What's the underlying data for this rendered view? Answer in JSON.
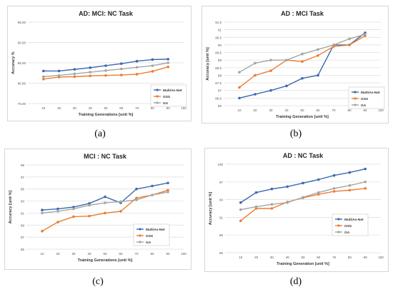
{
  "panels": [
    {
      "caption": "(a)"
    },
    {
      "caption": "(b)"
    },
    {
      "caption": "(c)"
    },
    {
      "caption": "(d)"
    }
  ],
  "colors": {
    "MultiAs-Net": "#3d69b0",
    "GSS": "#ed7d31",
    "GA": "#a5a5a5"
  },
  "chart_data": [
    {
      "type": "line",
      "title": "AD: MCI: NC Task",
      "xlabel": "Training Generations [unit %]",
      "ylabel": "Accuracy %",
      "xlim": [
        0,
        100
      ],
      "xticks": [
        10,
        20,
        30,
        40,
        50,
        60,
        70,
        80,
        90,
        100
      ],
      "ylim": [
        75,
        95
      ],
      "yticks": [
        "75.00",
        "80.00",
        "85.00",
        "90.00",
        "95.00"
      ],
      "ytick_values": [
        75,
        80,
        85,
        90,
        95
      ],
      "x": [
        10,
        20,
        30,
        40,
        50,
        60,
        70,
        80,
        90
      ],
      "series": [
        {
          "name": "MultiAs-Net",
          "values": [
            83.0,
            83.0,
            83.4,
            83.8,
            84.3,
            84.8,
            85.4,
            85.8,
            85.9
          ]
        },
        {
          "name": "GSS",
          "values": [
            81.0,
            81.5,
            81.6,
            81.8,
            81.9,
            82.0,
            82.2,
            82.9,
            84.0
          ]
        },
        {
          "name": "GA",
          "values": [
            81.6,
            81.9,
            82.3,
            82.7,
            83.1,
            83.5,
            83.9,
            84.3,
            85.0
          ]
        }
      ],
      "legend": "bottom-right",
      "grid": true
    },
    {
      "type": "line",
      "title": "AD : MCI Task",
      "xlabel": "Training Generation [unit %]",
      "ylabel": "Accuracy [unit %]",
      "xlim": [
        0,
        100
      ],
      "xticks": [
        10,
        20,
        30,
        40,
        50,
        60,
        70,
        80,
        90,
        100
      ],
      "ylim": [
        86,
        91.5
      ],
      "yticks": [
        "86",
        "86.5",
        "87",
        "87.5",
        "88",
        "88.5",
        "89",
        "89.5",
        "90",
        "90.5",
        "91",
        "91.5"
      ],
      "ytick_values": [
        86,
        86.5,
        87,
        87.5,
        88,
        88.5,
        89,
        89.5,
        90,
        90.5,
        91,
        91.5
      ],
      "x": [
        10,
        20,
        30,
        40,
        50,
        60,
        70,
        80,
        90
      ],
      "series": [
        {
          "name": "MultiAs-Net",
          "values": [
            86.5,
            86.75,
            87.0,
            87.3,
            87.8,
            88.0,
            90.0,
            90.0,
            90.8
          ]
        },
        {
          "name": "GSS",
          "values": [
            87.2,
            88.0,
            88.3,
            89.0,
            88.9,
            89.3,
            89.9,
            90.0,
            90.6
          ]
        },
        {
          "name": "GA",
          "values": [
            88.2,
            88.8,
            89.0,
            89.0,
            89.4,
            89.7,
            90.0,
            90.4,
            90.7
          ]
        }
      ],
      "legend": "bottom-right",
      "grid": true
    },
    {
      "type": "line",
      "title": "MCI : NC Task",
      "xlabel": "Training Generations [unit %]",
      "ylabel": "Accuracy [unit %]",
      "xlim": [
        0,
        100
      ],
      "xticks": [
        10,
        20,
        30,
        40,
        50,
        60,
        70,
        80,
        90,
        100
      ],
      "ylim": [
        85,
        99
      ],
      "yticks": [
        "85",
        "87",
        "89",
        "91",
        "93",
        "95",
        "97",
        "99"
      ],
      "ytick_values": [
        85,
        87,
        89,
        91,
        93,
        95,
        97,
        99
      ],
      "x": [
        10,
        20,
        30,
        40,
        50,
        60,
        70,
        80,
        90
      ],
      "series": [
        {
          "name": "MultiAs-Net",
          "values": [
            91.5,
            91.7,
            92.0,
            92.6,
            93.7,
            92.7,
            95.0,
            95.5,
            96.0
          ]
        },
        {
          "name": "GSS",
          "values": [
            88.0,
            89.5,
            90.4,
            90.5,
            91.0,
            91.3,
            93.5,
            94.0,
            94.8
          ]
        },
        {
          "name": "GA",
          "values": [
            91.0,
            91.3,
            91.7,
            92.3,
            92.7,
            92.9,
            93.2,
            94.0,
            94.5
          ]
        }
      ],
      "legend": "bottom-right",
      "grid": true
    },
    {
      "type": "line",
      "title": "AD : NC  Task",
      "xlabel": "Training Generation [unit %]",
      "ylabel": "Accuracy [unit %]",
      "xlim": [
        0,
        100
      ],
      "xticks": [
        10,
        20,
        30,
        40,
        50,
        60,
        70,
        80,
        90,
        100
      ],
      "ylim": [
        85,
        100
      ],
      "yticks": [
        "85",
        "88",
        "91",
        "94",
        "97",
        "100"
      ],
      "ytick_values": [
        85,
        88,
        91,
        94,
        97,
        100
      ],
      "x": [
        10,
        20,
        30,
        40,
        50,
        60,
        70,
        80,
        90
      ],
      "series": [
        {
          "name": "MultiAs-Net",
          "values": [
            93.5,
            95.2,
            95.8,
            96.2,
            96.8,
            97.4,
            98.1,
            98.6,
            99.2
          ]
        },
        {
          "name": "GSS",
          "values": [
            90.4,
            92.5,
            92.5,
            93.6,
            94.3,
            94.9,
            95.4,
            95.6,
            95.9
          ]
        },
        {
          "name": "GA",
          "values": [
            92.3,
            92.8,
            93.2,
            93.5,
            94.4,
            95.2,
            95.9,
            96.4,
            97.0
          ]
        }
      ],
      "legend": "bottom-right",
      "grid": true
    }
  ]
}
